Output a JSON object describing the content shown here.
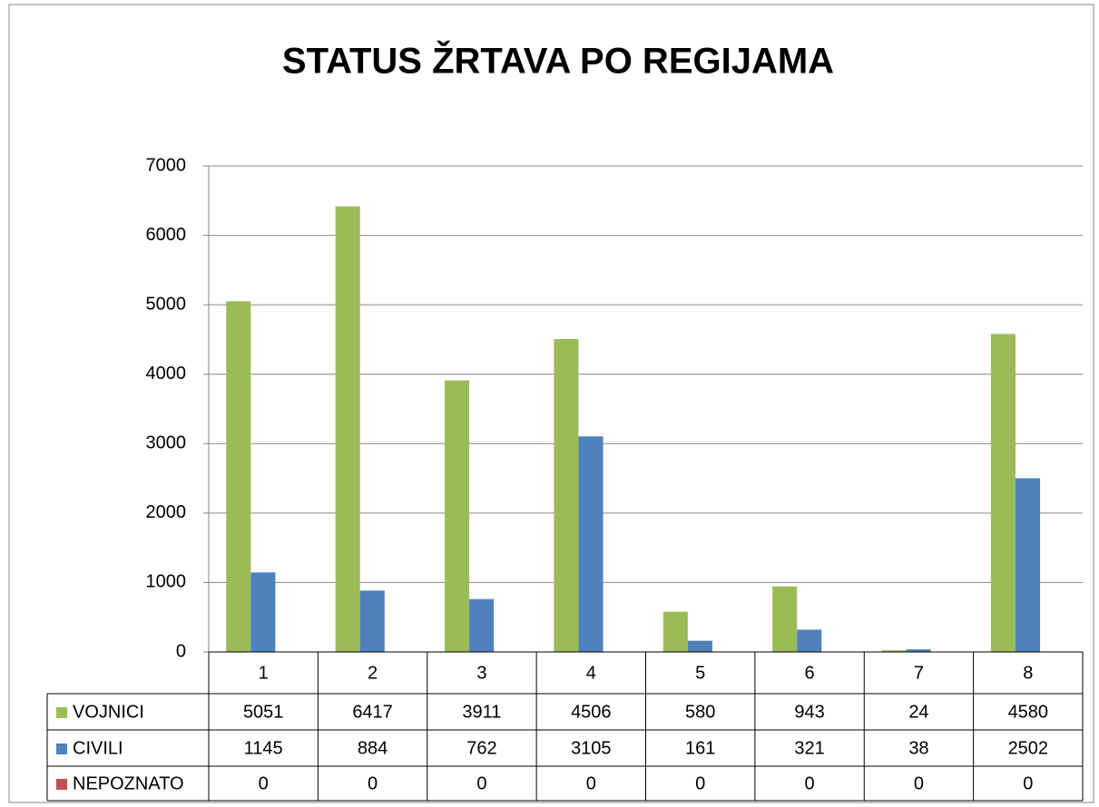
{
  "chart_data": {
    "type": "bar",
    "title": "STATUS ŽRTAVA PO REGIJAMA",
    "categories": [
      "1",
      "2",
      "3",
      "4",
      "5",
      "6",
      "7",
      "8"
    ],
    "series": [
      {
        "name": "VOJNICI",
        "color": "#9bbb59",
        "values": [
          5051,
          6417,
          3911,
          4506,
          580,
          943,
          24,
          4580
        ]
      },
      {
        "name": "CIVILI",
        "color": "#4f81bd",
        "values": [
          1145,
          884,
          762,
          3105,
          161,
          321,
          38,
          2502
        ]
      },
      {
        "name": "NEPOZNATO",
        "color": "#c0504d",
        "values": [
          0,
          0,
          0,
          0,
          0,
          0,
          0,
          0
        ]
      }
    ],
    "ylim": [
      0,
      7000
    ],
    "yticks": [
      0,
      1000,
      2000,
      3000,
      4000,
      5000,
      6000,
      7000
    ],
    "grid": true,
    "legend": "data-table"
  }
}
